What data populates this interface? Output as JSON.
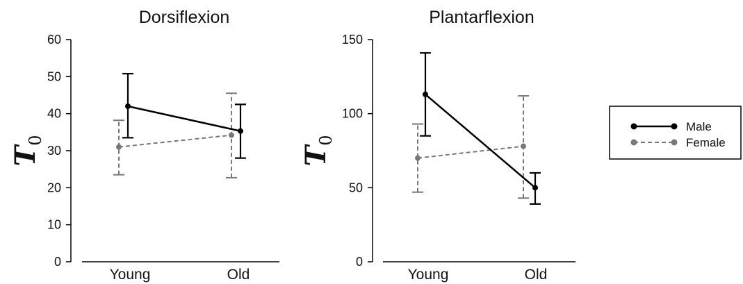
{
  "chart_data": [
    {
      "type": "line",
      "title": "Dorsiflexion",
      "ylabel": "T",
      "ylabel_subscript": "0",
      "categories": [
        "Young",
        "Old"
      ],
      "ylim": [
        0,
        60
      ],
      "yticks": [
        0,
        10,
        20,
        30,
        40,
        50,
        60
      ],
      "series": [
        {
          "name": "Male",
          "color": "#000000",
          "dash": "solid",
          "values": [
            42,
            35.3
          ],
          "error_low": [
            33.5,
            28
          ],
          "error_high": [
            50.8,
            42.5
          ]
        },
        {
          "name": "Female",
          "color": "#777777",
          "dash": "dashed",
          "values": [
            31,
            34.2
          ],
          "error_low": [
            23.5,
            22.7
          ],
          "error_high": [
            38.2,
            45.5
          ]
        }
      ]
    },
    {
      "type": "line",
      "title": "Plantarflexion",
      "ylabel": "T",
      "ylabel_subscript": "0",
      "categories": [
        "Young",
        "Old"
      ],
      "ylim": [
        0,
        150
      ],
      "yticks": [
        0,
        50,
        100,
        150
      ],
      "series": [
        {
          "name": "Male",
          "color": "#000000",
          "dash": "solid",
          "values": [
            113,
            50
          ],
          "error_low": [
            85,
            39
          ],
          "error_high": [
            141,
            60
          ]
        },
        {
          "name": "Female",
          "color": "#777777",
          "dash": "dashed",
          "values": [
            70,
            78
          ],
          "error_low": [
            47,
            43
          ],
          "error_high": [
            93,
            112
          ]
        }
      ]
    }
  ],
  "legend": {
    "position": "right",
    "entries": [
      {
        "name": "Male",
        "color": "#000000",
        "dash": "solid"
      },
      {
        "name": "Female",
        "color": "#777777",
        "dash": "dashed"
      }
    ]
  }
}
